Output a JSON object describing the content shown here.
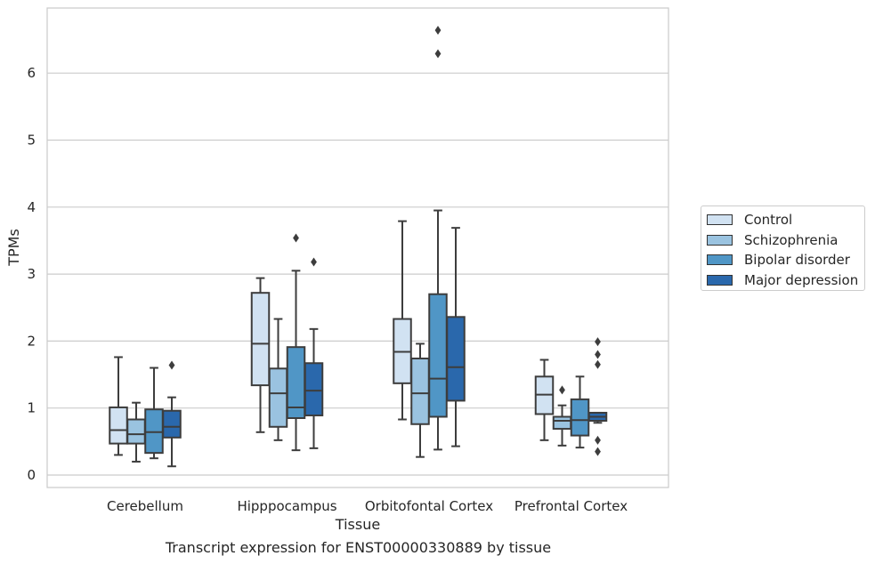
{
  "caption": "Transcript expression for ENST00000330889 by tissue",
  "chart_data": {
    "type": "box",
    "title": "",
    "xlabel": "Tissue",
    "ylabel": "TPMs",
    "ylim": [
      -0.18,
      6.97
    ],
    "yticks": [
      0,
      1,
      2,
      3,
      4,
      5,
      6
    ],
    "grid": "horizontal",
    "legend_position": "right",
    "categories": [
      "Cerebellum",
      "Hipppocampus",
      "Orbitofontal Cortex",
      "Prefrontal Cortex"
    ],
    "series": [
      {
        "name": "Control",
        "color": "#d1e2f2",
        "boxes": [
          {
            "whislo": 0.3,
            "q1": 0.47,
            "med": 0.67,
            "q3": 1.01,
            "whishi": 1.76,
            "fliers": []
          },
          {
            "whislo": 0.64,
            "q1": 1.34,
            "med": 1.96,
            "q3": 2.72,
            "whishi": 2.94,
            "fliers": []
          },
          {
            "whislo": 0.83,
            "q1": 1.37,
            "med": 1.84,
            "q3": 2.33,
            "whishi": 3.79,
            "fliers": []
          },
          {
            "whislo": 0.52,
            "q1": 0.91,
            "med": 1.2,
            "q3": 1.47,
            "whishi": 1.72,
            "fliers": []
          }
        ]
      },
      {
        "name": "Schizophrenia",
        "color": "#9ac3e0",
        "boxes": [
          {
            "whislo": 0.2,
            "q1": 0.47,
            "med": 0.61,
            "q3": 0.83,
            "whishi": 1.08,
            "fliers": []
          },
          {
            "whislo": 0.52,
            "q1": 0.72,
            "med": 1.22,
            "q3": 1.59,
            "whishi": 2.33,
            "fliers": []
          },
          {
            "whislo": 0.27,
            "q1": 0.76,
            "med": 1.22,
            "q3": 1.74,
            "whishi": 1.96,
            "fliers": []
          },
          {
            "whislo": 0.44,
            "q1": 0.69,
            "med": 0.81,
            "q3": 0.87,
            "whishi": 1.04,
            "fliers": [
              1.27
            ]
          }
        ]
      },
      {
        "name": "Bipolar disorder",
        "color": "#5096c6",
        "boxes": [
          {
            "whislo": 0.25,
            "q1": 0.33,
            "med": 0.64,
            "q3": 0.98,
            "whishi": 1.6,
            "fliers": []
          },
          {
            "whislo": 0.37,
            "q1": 0.85,
            "med": 1.01,
            "q3": 1.91,
            "whishi": 3.05,
            "fliers": [
              3.54
            ]
          },
          {
            "whislo": 0.38,
            "q1": 0.87,
            "med": 1.44,
            "q3": 2.7,
            "whishi": 3.95,
            "fliers": [
              6.29,
              6.64
            ]
          },
          {
            "whislo": 0.41,
            "q1": 0.59,
            "med": 0.82,
            "q3": 1.13,
            "whishi": 1.47,
            "fliers": []
          }
        ]
      },
      {
        "name": "Major depression",
        "color": "#2a68ac",
        "boxes": [
          {
            "whislo": 0.13,
            "q1": 0.56,
            "med": 0.72,
            "q3": 0.96,
            "whishi": 1.16,
            "fliers": [
              1.64
            ]
          },
          {
            "whislo": 0.4,
            "q1": 0.89,
            "med": 1.26,
            "q3": 1.67,
            "whishi": 2.18,
            "fliers": [
              3.18
            ]
          },
          {
            "whislo": 0.43,
            "q1": 1.11,
            "med": 1.61,
            "q3": 2.36,
            "whishi": 3.69,
            "fliers": []
          },
          {
            "whislo": 0.78,
            "q1": 0.81,
            "med": 0.87,
            "q3": 0.93,
            "whishi": 0.93,
            "fliers": [
              0.35,
              0.52,
              1.65,
              1.8,
              1.99
            ]
          }
        ]
      }
    ]
  }
}
